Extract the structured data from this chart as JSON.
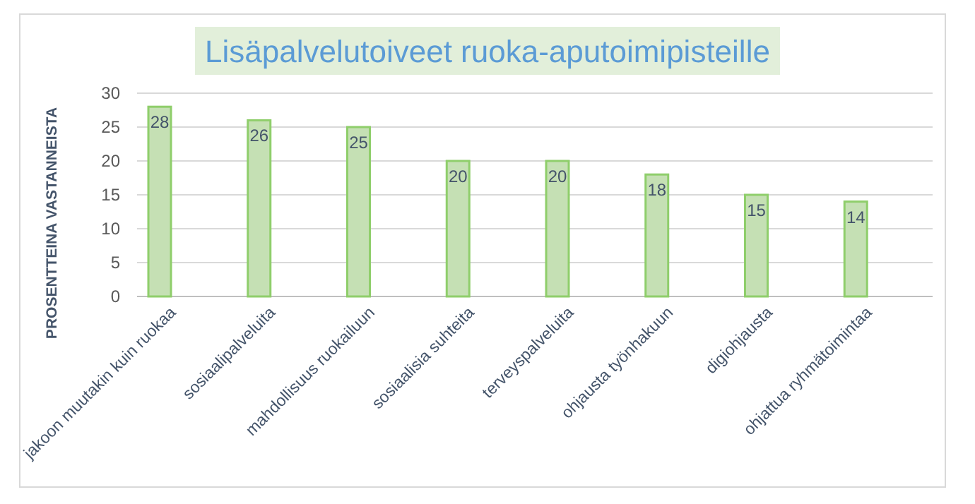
{
  "chart_data": {
    "type": "bar",
    "title": "Lisäpalvelutoiveet ruoka-aputoimipisteille",
    "ylabel": "PROSENTTEINA VASTANNEISTA",
    "categories": [
      "jakoon muutakin kuin ruokaa",
      "sosiaalipalveluita",
      "mahdollisuus ruokailuun",
      "sosiaalisia suhteita",
      "terveyspalveluita",
      "ohjausta työnhakuun",
      "digiohjausta",
      "ohjattua ryhmätoimintaa"
    ],
    "values": [
      28,
      26,
      25,
      20,
      20,
      18,
      15,
      14
    ],
    "color": "#c5e0b4",
    "ylim": [
      0,
      30
    ],
    "yticks": [
      0,
      5,
      10,
      15,
      20,
      25,
      30
    ],
    "grid": "y",
    "data_labels": true
  }
}
